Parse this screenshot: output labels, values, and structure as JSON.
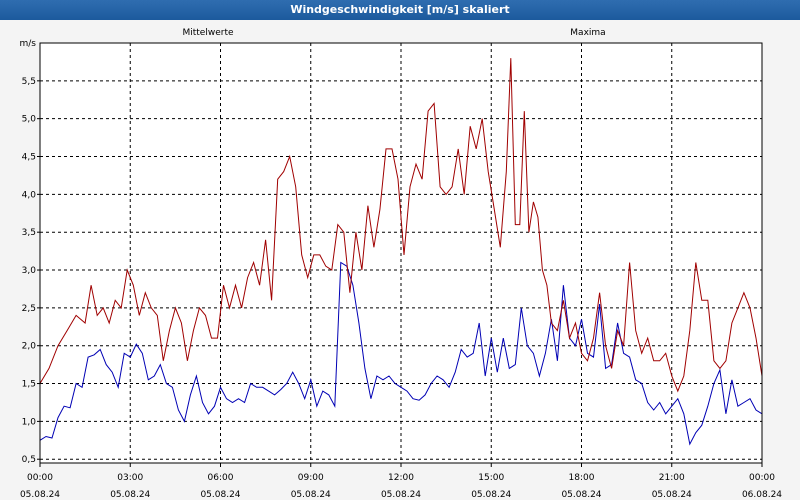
{
  "window": {
    "title": "Windgeschwindigkeit [m/s] skaliert"
  },
  "chart_data": {
    "type": "line",
    "title": "Windgeschwindigkeit [m/s] skaliert",
    "ylabel": "m/s",
    "ylim": [
      0.45,
      6.0
    ],
    "xlim": [
      0,
      24
    ],
    "yticks": [
      "0,5",
      "1,0",
      "1,5",
      "2,0",
      "2,5",
      "3,0",
      "3,5",
      "4,0",
      "4,5",
      "5,0",
      "5,5"
    ],
    "ytick_values": [
      0.5,
      1.0,
      1.5,
      2.0,
      2.5,
      3.0,
      3.5,
      4.0,
      4.5,
      5.0,
      5.5
    ],
    "xticks": [
      {
        "time": "00:00",
        "date": "05.08.24"
      },
      {
        "time": "03:00",
        "date": "05.08.24"
      },
      {
        "time": "06:00",
        "date": "05.08.24"
      },
      {
        "time": "09:00",
        "date": "05.08.24"
      },
      {
        "time": "12:00",
        "date": "05.08.24"
      },
      {
        "time": "15:00",
        "date": "05.08.24"
      },
      {
        "time": "18:00",
        "date": "05.08.24"
      },
      {
        "time": "21:00",
        "date": "05.08.24"
      },
      {
        "time": "00:00",
        "date": "06.08.24"
      }
    ],
    "grid": true,
    "colors": {
      "mittelwerte": "#0000b4",
      "maxima": "#a00000"
    },
    "series": [
      {
        "name": "Mittelwerte",
        "points": [
          [
            0.0,
            0.75
          ],
          [
            0.2,
            0.8
          ],
          [
            0.4,
            0.78
          ],
          [
            0.6,
            1.05
          ],
          [
            0.8,
            1.2
          ],
          [
            1.0,
            1.18
          ],
          [
            1.2,
            1.5
          ],
          [
            1.4,
            1.45
          ],
          [
            1.6,
            1.85
          ],
          [
            1.8,
            1.88
          ],
          [
            2.0,
            1.95
          ],
          [
            2.2,
            1.75
          ],
          [
            2.4,
            1.65
          ],
          [
            2.6,
            1.45
          ],
          [
            2.8,
            1.9
          ],
          [
            3.0,
            1.85
          ],
          [
            3.2,
            2.02
          ],
          [
            3.4,
            1.9
          ],
          [
            3.6,
            1.55
          ],
          [
            3.8,
            1.6
          ],
          [
            4.0,
            1.75
          ],
          [
            4.2,
            1.5
          ],
          [
            4.4,
            1.45
          ],
          [
            4.6,
            1.15
          ],
          [
            4.8,
            1.0
          ],
          [
            5.0,
            1.35
          ],
          [
            5.2,
            1.6
          ],
          [
            5.4,
            1.25
          ],
          [
            5.6,
            1.1
          ],
          [
            5.8,
            1.2
          ],
          [
            6.0,
            1.45
          ],
          [
            6.2,
            1.3
          ],
          [
            6.4,
            1.25
          ],
          [
            6.6,
            1.3
          ],
          [
            6.8,
            1.25
          ],
          [
            7.0,
            1.5
          ],
          [
            7.2,
            1.45
          ],
          [
            7.4,
            1.45
          ],
          [
            7.6,
            1.4
          ],
          [
            7.8,
            1.35
          ],
          [
            8.0,
            1.42
          ],
          [
            8.2,
            1.5
          ],
          [
            8.4,
            1.65
          ],
          [
            8.6,
            1.5
          ],
          [
            8.8,
            1.3
          ],
          [
            9.0,
            1.55
          ],
          [
            9.2,
            1.2
          ],
          [
            9.4,
            1.4
          ],
          [
            9.6,
            1.35
          ],
          [
            9.8,
            1.2
          ],
          [
            10.0,
            3.1
          ],
          [
            10.2,
            3.05
          ],
          [
            10.4,
            2.8
          ],
          [
            10.6,
            2.3
          ],
          [
            10.8,
            1.7
          ],
          [
            11.0,
            1.3
          ],
          [
            11.2,
            1.6
          ],
          [
            11.4,
            1.55
          ],
          [
            11.6,
            1.6
          ],
          [
            11.8,
            1.5
          ],
          [
            12.0,
            1.45
          ],
          [
            12.2,
            1.4
          ],
          [
            12.4,
            1.3
          ],
          [
            12.6,
            1.28
          ],
          [
            12.8,
            1.35
          ],
          [
            13.0,
            1.5
          ],
          [
            13.2,
            1.6
          ],
          [
            13.4,
            1.55
          ],
          [
            13.6,
            1.45
          ],
          [
            13.8,
            1.65
          ],
          [
            14.0,
            1.95
          ],
          [
            14.2,
            1.85
          ],
          [
            14.4,
            1.9
          ],
          [
            14.6,
            2.3
          ],
          [
            14.8,
            1.6
          ],
          [
            15.0,
            2.1
          ],
          [
            15.2,
            1.65
          ],
          [
            15.4,
            2.1
          ],
          [
            15.6,
            1.7
          ],
          [
            15.8,
            1.75
          ],
          [
            16.0,
            2.5
          ],
          [
            16.2,
            2.0
          ],
          [
            16.4,
            1.9
          ],
          [
            16.6,
            1.6
          ],
          [
            16.8,
            1.9
          ],
          [
            17.0,
            2.35
          ],
          [
            17.2,
            1.8
          ],
          [
            17.4,
            2.8
          ],
          [
            17.6,
            2.1
          ],
          [
            17.8,
            2.0
          ],
          [
            18.0,
            2.35
          ],
          [
            18.2,
            1.9
          ],
          [
            18.4,
            1.85
          ],
          [
            18.6,
            2.55
          ],
          [
            18.8,
            1.7
          ],
          [
            19.0,
            1.75
          ],
          [
            19.2,
            2.3
          ],
          [
            19.4,
            1.9
          ],
          [
            19.6,
            1.85
          ],
          [
            19.8,
            1.55
          ],
          [
            20.0,
            1.5
          ],
          [
            20.2,
            1.25
          ],
          [
            20.4,
            1.15
          ],
          [
            20.6,
            1.25
          ],
          [
            20.8,
            1.1
          ],
          [
            21.0,
            1.2
          ],
          [
            21.2,
            1.3
          ],
          [
            21.4,
            1.1
          ],
          [
            21.6,
            0.7
          ],
          [
            21.8,
            0.85
          ],
          [
            22.0,
            0.95
          ],
          [
            22.2,
            1.2
          ],
          [
            22.4,
            1.5
          ],
          [
            22.6,
            1.68
          ],
          [
            22.8,
            1.1
          ],
          [
            23.0,
            1.55
          ],
          [
            23.2,
            1.2
          ],
          [
            23.4,
            1.25
          ],
          [
            23.6,
            1.3
          ],
          [
            23.8,
            1.15
          ],
          [
            24.0,
            1.1
          ]
        ]
      },
      {
        "name": "Maxima",
        "points": [
          [
            0.0,
            1.5
          ],
          [
            0.3,
            1.7
          ],
          [
            0.6,
            2.0
          ],
          [
            0.9,
            2.2
          ],
          [
            1.2,
            2.4
          ],
          [
            1.5,
            2.3
          ],
          [
            1.7,
            2.8
          ],
          [
            1.9,
            2.4
          ],
          [
            2.1,
            2.5
          ],
          [
            2.3,
            2.3
          ],
          [
            2.5,
            2.6
          ],
          [
            2.7,
            2.5
          ],
          [
            2.9,
            3.0
          ],
          [
            3.1,
            2.8
          ],
          [
            3.3,
            2.4
          ],
          [
            3.5,
            2.7
          ],
          [
            3.7,
            2.5
          ],
          [
            3.9,
            2.4
          ],
          [
            4.1,
            1.8
          ],
          [
            4.3,
            2.2
          ],
          [
            4.5,
            2.5
          ],
          [
            4.7,
            2.3
          ],
          [
            4.9,
            1.8
          ],
          [
            5.1,
            2.2
          ],
          [
            5.3,
            2.5
          ],
          [
            5.5,
            2.4
          ],
          [
            5.7,
            2.1
          ],
          [
            5.9,
            2.1
          ],
          [
            6.1,
            2.8
          ],
          [
            6.3,
            2.5
          ],
          [
            6.5,
            2.8
          ],
          [
            6.7,
            2.5
          ],
          [
            6.9,
            2.9
          ],
          [
            7.1,
            3.1
          ],
          [
            7.3,
            2.8
          ],
          [
            7.5,
            3.4
          ],
          [
            7.7,
            2.6
          ],
          [
            7.9,
            4.2
          ],
          [
            8.1,
            4.3
          ],
          [
            8.3,
            4.5
          ],
          [
            8.5,
            4.1
          ],
          [
            8.7,
            3.2
          ],
          [
            8.9,
            2.9
          ],
          [
            9.1,
            3.2
          ],
          [
            9.3,
            3.2
          ],
          [
            9.5,
            3.05
          ],
          [
            9.7,
            3.0
          ],
          [
            9.9,
            3.6
          ],
          [
            10.1,
            3.5
          ],
          [
            10.3,
            2.7
          ],
          [
            10.5,
            3.5
          ],
          [
            10.7,
            3.0
          ],
          [
            10.9,
            3.85
          ],
          [
            11.1,
            3.3
          ],
          [
            11.3,
            3.8
          ],
          [
            11.5,
            4.6
          ],
          [
            11.7,
            4.6
          ],
          [
            11.9,
            4.2
          ],
          [
            12.1,
            3.2
          ],
          [
            12.3,
            4.1
          ],
          [
            12.5,
            4.4
          ],
          [
            12.7,
            4.2
          ],
          [
            12.9,
            5.1
          ],
          [
            13.1,
            5.2
          ],
          [
            13.3,
            4.1
          ],
          [
            13.5,
            4.0
          ],
          [
            13.7,
            4.1
          ],
          [
            13.9,
            4.6
          ],
          [
            14.1,
            4.0
          ],
          [
            14.3,
            4.9
          ],
          [
            14.5,
            4.6
          ],
          [
            14.7,
            5.0
          ],
          [
            14.9,
            4.3
          ],
          [
            15.1,
            3.8
          ],
          [
            15.3,
            3.3
          ],
          [
            15.5,
            4.3
          ],
          [
            15.65,
            5.8
          ],
          [
            15.8,
            3.6
          ],
          [
            15.95,
            3.6
          ],
          [
            16.1,
            5.1
          ],
          [
            16.25,
            3.5
          ],
          [
            16.4,
            3.9
          ],
          [
            16.55,
            3.7
          ],
          [
            16.7,
            3.0
          ],
          [
            16.85,
            2.8
          ],
          [
            17.0,
            2.3
          ],
          [
            17.2,
            2.2
          ],
          [
            17.4,
            2.6
          ],
          [
            17.6,
            2.1
          ],
          [
            17.8,
            2.3
          ],
          [
            18.0,
            1.9
          ],
          [
            18.2,
            1.8
          ],
          [
            18.4,
            2.1
          ],
          [
            18.6,
            2.7
          ],
          [
            18.8,
            2.0
          ],
          [
            19.0,
            1.7
          ],
          [
            19.2,
            2.2
          ],
          [
            19.4,
            2.0
          ],
          [
            19.6,
            3.1
          ],
          [
            19.8,
            2.2
          ],
          [
            20.0,
            1.9
          ],
          [
            20.2,
            2.1
          ],
          [
            20.4,
            1.8
          ],
          [
            20.6,
            1.8
          ],
          [
            20.8,
            1.9
          ],
          [
            21.0,
            1.6
          ],
          [
            21.2,
            1.4
          ],
          [
            21.4,
            1.6
          ],
          [
            21.6,
            2.2
          ],
          [
            21.8,
            3.1
          ],
          [
            22.0,
            2.6
          ],
          [
            22.2,
            2.6
          ],
          [
            22.4,
            1.8
          ],
          [
            22.6,
            1.7
          ],
          [
            22.8,
            1.8
          ],
          [
            23.0,
            2.3
          ],
          [
            23.2,
            2.5
          ],
          [
            23.4,
            2.7
          ],
          [
            23.6,
            2.5
          ],
          [
            23.8,
            2.1
          ],
          [
            24.0,
            1.6
          ]
        ]
      }
    ]
  }
}
